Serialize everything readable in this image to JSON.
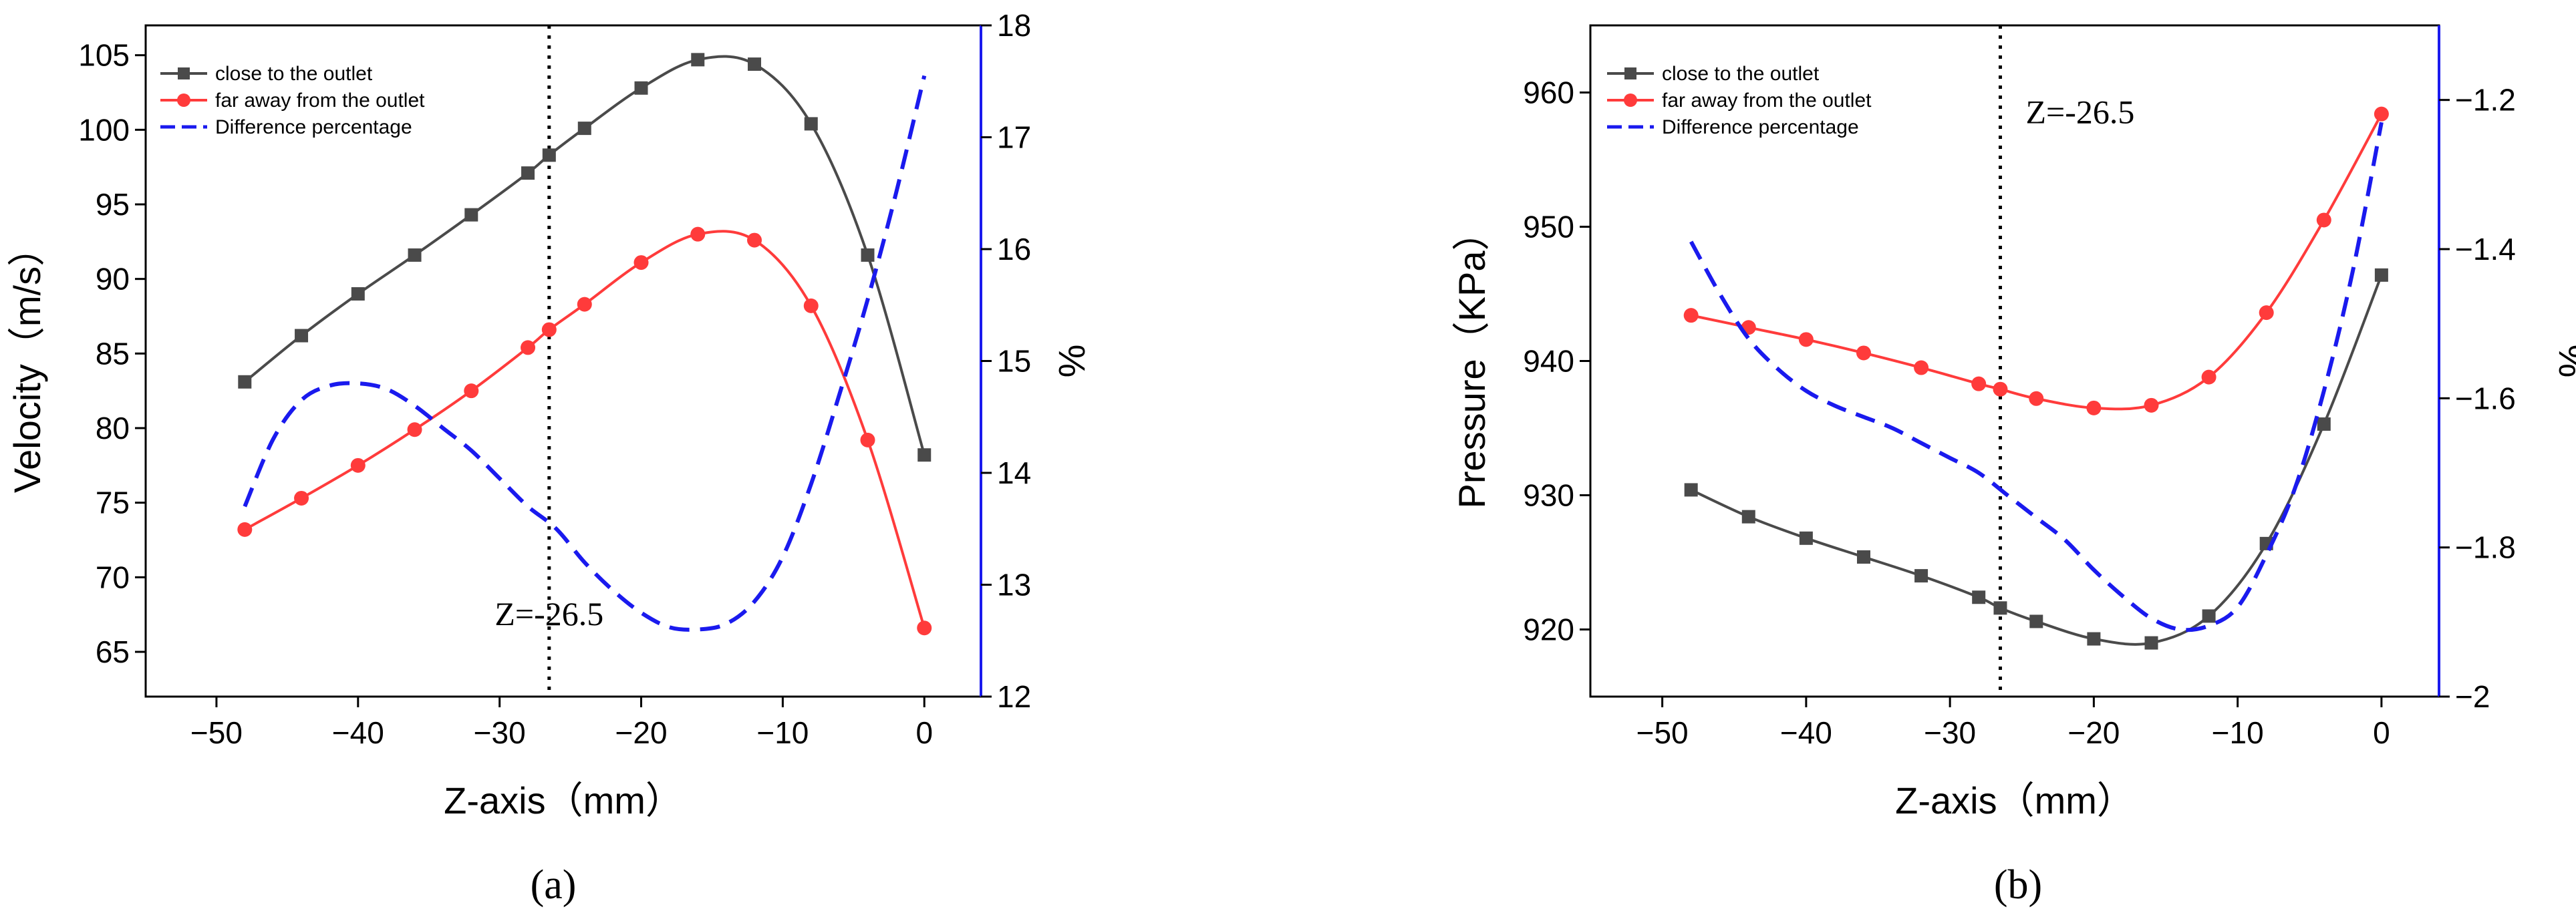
{
  "chart_data": [
    {
      "id": "a",
      "type": "line",
      "panel_label": "(a)",
      "title": "",
      "xlabel": "Z-axis（mm）",
      "ylabel": "Velocity（m/s）",
      "y2label": "%",
      "xlim": [
        -55,
        4
      ],
      "ylim": [
        62,
        107
      ],
      "y2lim": [
        12,
        18
      ],
      "xticks": [
        -50,
        -40,
        -30,
        -20,
        -10,
        0
      ],
      "yticks": [
        65,
        70,
        75,
        80,
        85,
        90,
        95,
        100,
        105
      ],
      "y2ticks": [
        12,
        13,
        14,
        15,
        16,
        17,
        18
      ],
      "annotation": {
        "text": "Z=-26.5",
        "x": -26.5,
        "y_text": 67.5
      },
      "legend_position": "top-left",
      "series": [
        {
          "name": "close to the outlet",
          "color": "#4a4a4a",
          "marker": "square",
          "axis": "left",
          "x": [
            -48,
            -44,
            -40,
            -36,
            -32,
            -28,
            -26.5,
            -24,
            -20,
            -16,
            -12,
            -8,
            -4,
            0
          ],
          "y": [
            83.1,
            86.2,
            89.0,
            91.6,
            94.3,
            97.1,
            98.3,
            100.1,
            102.8,
            104.7,
            104.4,
            100.4,
            91.6,
            78.2
          ]
        },
        {
          "name": "far away from the outlet",
          "color": "#ff3b3b",
          "marker": "circle",
          "axis": "left",
          "x": [
            -48,
            -44,
            -40,
            -36,
            -32,
            -28,
            -26.5,
            -24,
            -20,
            -16,
            -12,
            -8,
            -4,
            0
          ],
          "y": [
            73.2,
            75.3,
            77.5,
            79.9,
            82.5,
            85.4,
            86.6,
            88.3,
            91.1,
            93.0,
            92.6,
            88.2,
            79.2,
            66.6
          ]
        },
        {
          "name": "Difference percentage",
          "color": "#1a1aee",
          "marker": "none",
          "dashed": true,
          "axis": "right",
          "x": [
            -48,
            -46,
            -44,
            -42,
            -40,
            -38,
            -36,
            -34,
            -32,
            -30,
            -28,
            -26,
            -24,
            -22,
            -20,
            -18,
            -16,
            -14,
            -12,
            -10,
            -8,
            -6,
            -4,
            -2,
            0
          ],
          "y": [
            13.7,
            14.3,
            14.65,
            14.78,
            14.8,
            14.75,
            14.6,
            14.4,
            14.2,
            13.95,
            13.7,
            13.5,
            13.2,
            12.95,
            12.75,
            12.62,
            12.6,
            12.65,
            12.85,
            13.25,
            13.9,
            14.7,
            15.55,
            16.5,
            17.55
          ]
        }
      ]
    },
    {
      "id": "b",
      "type": "line",
      "panel_label": "(b)",
      "title": "",
      "xlabel": "Z-axis（mm）",
      "ylabel": "Pressure（KPa）",
      "y2label": "%",
      "xlim": [
        -55,
        4
      ],
      "ylim": [
        915,
        965
      ],
      "y2lim": [
        -2.0,
        -1.1
      ],
      "xticks": [
        -50,
        -40,
        -30,
        -20,
        -10,
        0
      ],
      "yticks": [
        920,
        930,
        940,
        950,
        960
      ],
      "y2ticks": [
        -2.0,
        -1.8,
        -1.6,
        -1.4,
        -1.2
      ],
      "annotation": {
        "text": "Z=-26.5",
        "x": -26.5,
        "y_text": 958.5
      },
      "legend_position": "top-left",
      "series": [
        {
          "name": "close to the outlet",
          "color": "#4a4a4a",
          "marker": "square",
          "axis": "left",
          "x": [
            -48,
            -44,
            -40,
            -36,
            -32,
            -28,
            -26.5,
            -24,
            -20,
            -16,
            -12,
            -8,
            -4,
            0
          ],
          "y": [
            930.4,
            928.4,
            926.8,
            925.4,
            924.0,
            922.4,
            921.6,
            920.6,
            919.3,
            919.0,
            921.0,
            926.4,
            935.3,
            946.4
          ]
        },
        {
          "name": "far away from the outlet",
          "color": "#ff3b3b",
          "marker": "circle",
          "axis": "left",
          "x": [
            -48,
            -44,
            -40,
            -36,
            -32,
            -28,
            -26.5,
            -24,
            -20,
            -16,
            -12,
            -8,
            -4,
            0
          ],
          "y": [
            943.4,
            942.5,
            941.6,
            940.6,
            939.5,
            938.3,
            937.9,
            937.2,
            936.5,
            936.7,
            938.8,
            943.6,
            950.5,
            958.4
          ]
        },
        {
          "name": "Difference percentage",
          "color": "#1a1aee",
          "marker": "none",
          "dashed": true,
          "axis": "right",
          "x": [
            -48,
            -46,
            -44,
            -42,
            -40,
            -38,
            -36,
            -34,
            -32,
            -30,
            -28,
            -26,
            -24,
            -22,
            -20,
            -18,
            -16,
            -14,
            -12,
            -10,
            -8,
            -6,
            -4,
            -2,
            0
          ],
          "y": [
            -1.39,
            -1.46,
            -1.52,
            -1.56,
            -1.59,
            -1.61,
            -1.625,
            -1.64,
            -1.66,
            -1.68,
            -1.7,
            -1.73,
            -1.76,
            -1.79,
            -1.83,
            -1.865,
            -1.895,
            -1.91,
            -1.905,
            -1.88,
            -1.81,
            -1.72,
            -1.59,
            -1.43,
            -1.23
          ]
        }
      ]
    }
  ]
}
